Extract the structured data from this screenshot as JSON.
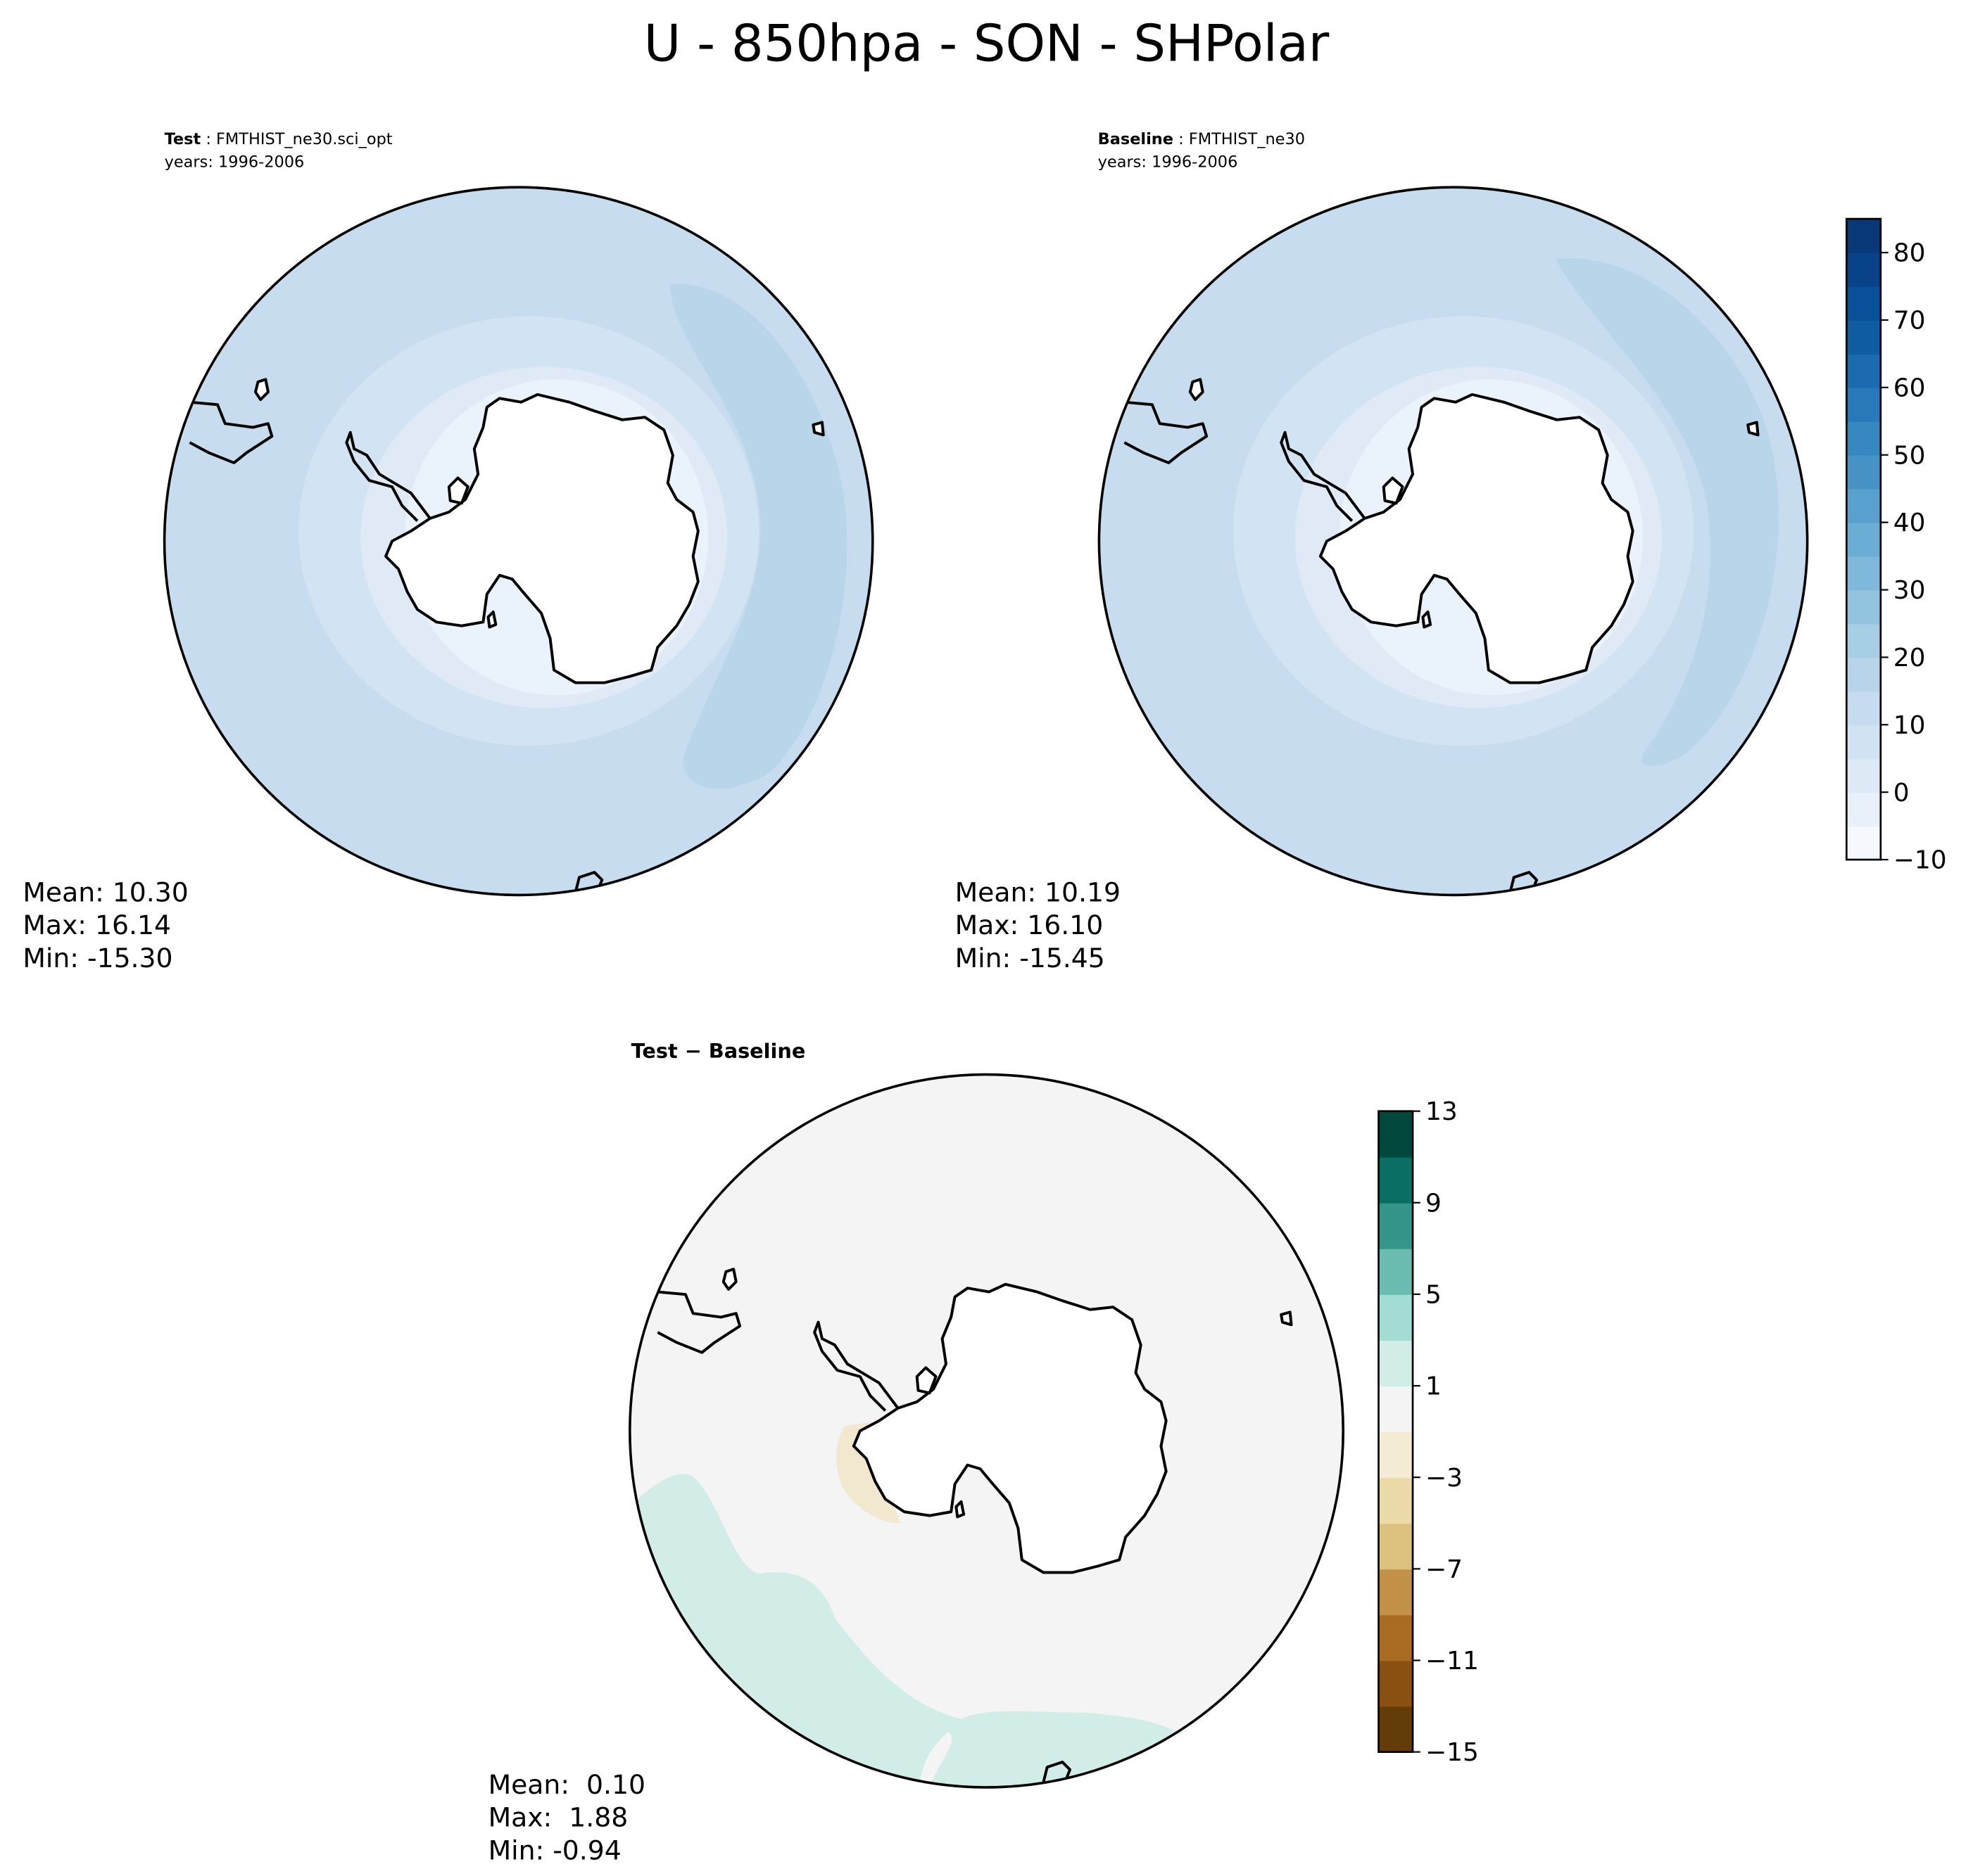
{
  "title": "U - 850hpa - SON - SHPolar",
  "panels": [
    {
      "label_bold": "Test",
      "label_rest": " : FMTHIST_ne30.sci_opt",
      "years": "years: 1996-2006",
      "stats": [
        "Mean: 10.30",
        "Max: 16.14",
        "Min: -15.30"
      ]
    },
    {
      "label_bold": "Baseline",
      "label_rest": " : FMTHIST_ne30",
      "years": "years: 1996-2006",
      "stats": [
        "Mean: 10.19",
        "Max: 16.10",
        "Min: -15.45"
      ]
    },
    {
      "label_bold": "Test − Baseline",
      "stats": [
        "Mean:  0.10",
        "Max:  1.88",
        "Min: -0.94"
      ]
    }
  ],
  "colorbars": [
    {
      "levels": [
        -10,
        -5,
        0,
        5,
        10,
        15,
        20,
        25,
        30,
        35,
        40,
        45,
        50,
        55,
        60,
        65,
        70,
        75,
        80,
        85
      ],
      "colors": [
        "#f5f9fe",
        "#e8f1fa",
        "#dde9f6",
        "#d1e2f2",
        "#c6dbef",
        "#b7d4ea",
        "#a6cee4",
        "#92c4df",
        "#7fb8da",
        "#6aaed6",
        "#58a1cf",
        "#4793c5",
        "#3787c0",
        "#2879b9",
        "#1c6aaf",
        "#0f5ca3",
        "#08509a",
        "#08438a",
        "#083877"
      ],
      "ticks": [
        {
          "value": -10,
          "label": "−10"
        },
        0,
        10,
        20,
        30,
        40,
        50,
        60,
        70,
        80
      ]
    },
    {
      "levels": [
        -15,
        -13,
        -11,
        -9,
        -7,
        -5,
        -3,
        -1,
        1,
        3,
        5,
        7,
        9,
        11,
        13
      ],
      "colors": [
        "#633c0a",
        "#8a5012",
        "#a96c22",
        "#c39148",
        "#dcc27e",
        "#ecdaa9",
        "#f4ecd4",
        "#f3f4f3",
        "#d2ece8",
        "#a3dcd2",
        "#6cbdb1",
        "#35958b",
        "#0b6e64",
        "#03483d"
      ],
      "ticks": [
        {
          "value": -15,
          "label": "−15"
        },
        {
          "value": -11,
          "label": "−11"
        },
        {
          "value": -7,
          "label": "−7"
        },
        {
          "value": -3,
          "label": "−3"
        },
        1,
        5,
        9,
        13
      ]
    }
  ]
}
